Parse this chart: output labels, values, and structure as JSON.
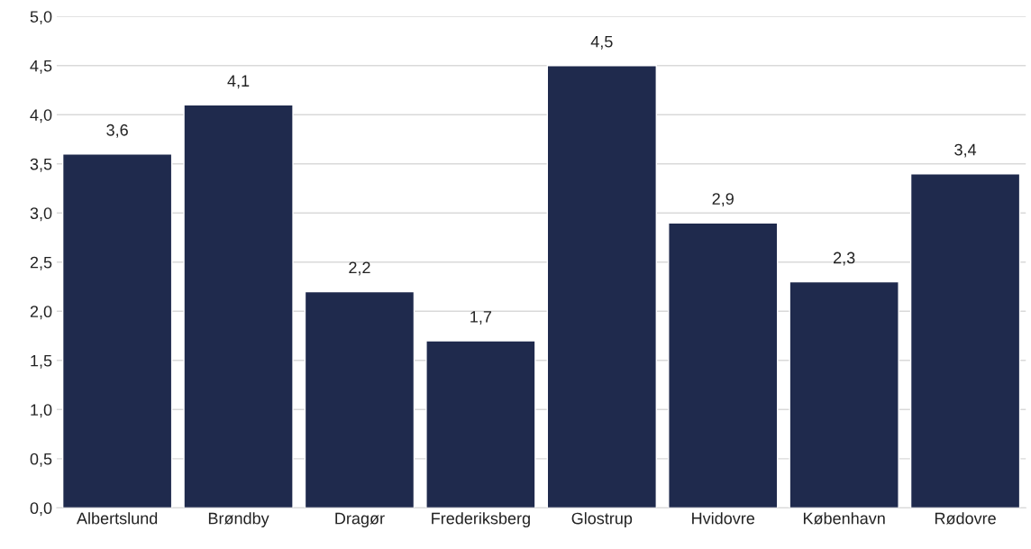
{
  "chart_data": {
    "type": "bar",
    "categories": [
      "Albertslund",
      "Brøndby",
      "Dragør",
      "Frederiksberg",
      "Glostrup",
      "Hvidovre",
      "København",
      "Rødovre"
    ],
    "values": [
      3.6,
      4.1,
      2.2,
      1.7,
      4.5,
      2.9,
      2.3,
      3.4
    ],
    "value_labels": [
      "3,6",
      "4,1",
      "2,2",
      "1,7",
      "4,5",
      "2,9",
      "2,3",
      "3,4"
    ],
    "color": "#1f2a4d",
    "ylim": [
      0,
      5
    ],
    "yticks": [
      {
        "value": 0,
        "label": "0,0"
      },
      {
        "value": 0.5,
        "label": "0,5"
      },
      {
        "value": 1,
        "label": "1,0"
      },
      {
        "value": 1.5,
        "label": "1,5"
      },
      {
        "value": 2,
        "label": "2,0"
      },
      {
        "value": 2.5,
        "label": "2,5"
      },
      {
        "value": 3,
        "label": "3,0"
      },
      {
        "value": 3.5,
        "label": "3,5"
      },
      {
        "value": 4,
        "label": "4,0"
      },
      {
        "value": 4.5,
        "label": "4,5"
      },
      {
        "value": 5,
        "label": "5,0"
      }
    ],
    "grid": "y"
  }
}
